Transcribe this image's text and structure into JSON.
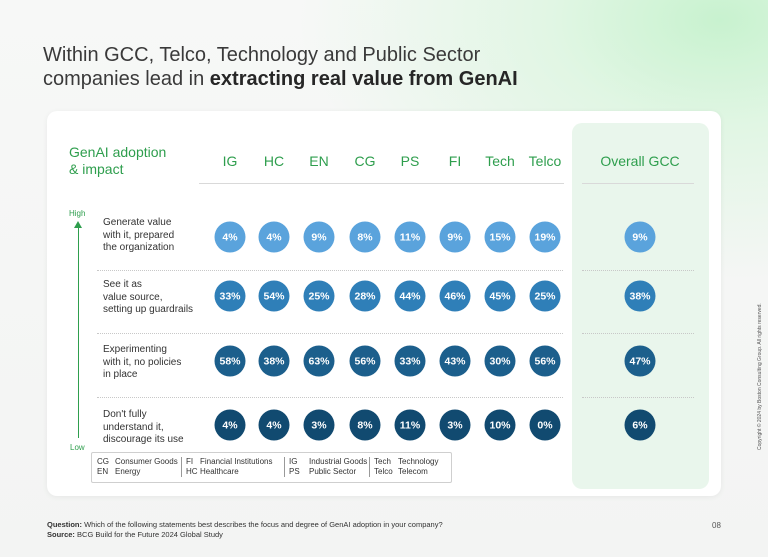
{
  "title": {
    "line1": "Within GCC, Telco, Technology and Public Sector",
    "line2_prefix": "companies lead in ",
    "line2_bold": "extracting real value from GenAI"
  },
  "chart_data": {
    "type": "table",
    "title": "GenAI adoption & impact",
    "header_label_line1": "GenAI adoption",
    "header_label_line2": "& impact",
    "columns": [
      "IG",
      "HC",
      "EN",
      "CG",
      "PS",
      "FI",
      "Tech",
      "Telco",
      "Overall GCC"
    ],
    "rows": [
      {
        "label_lines": [
          "Generate value",
          "with it, prepared",
          "the organization"
        ],
        "values": [
          "4%",
          "4%",
          "9%",
          "8%",
          "11%",
          "9%",
          "15%",
          "19%",
          "9%"
        ]
      },
      {
        "label_lines": [
          "See it as",
          "value source,",
          "setting up guardrails"
        ],
        "values": [
          "33%",
          "54%",
          "25%",
          "28%",
          "44%",
          "46%",
          "45%",
          "25%",
          "38%"
        ]
      },
      {
        "label_lines": [
          "Experimenting",
          "with it, no policies",
          "in place"
        ],
        "values": [
          "58%",
          "38%",
          "63%",
          "56%",
          "33%",
          "43%",
          "30%",
          "56%",
          "47%"
        ]
      },
      {
        "label_lines": [
          "Don't fully",
          "understand it,",
          "discourage its use"
        ],
        "values": [
          "4%",
          "4%",
          "3%",
          "8%",
          "11%",
          "3%",
          "10%",
          "0%",
          "6%"
        ]
      }
    ],
    "row_colors": [
      "#5aa3dc",
      "#2f7fb8",
      "#1c5f8c",
      "#114a70"
    ],
    "axis": {
      "high": "High",
      "low": "Low"
    }
  },
  "legend": [
    [
      [
        "CG",
        "Consumer Goods"
      ],
      [
        "EN",
        "Energy"
      ]
    ],
    [
      [
        "FI",
        "Financial Institutions"
      ],
      [
        "HC",
        "Healthcare"
      ]
    ],
    [
      [
        "IG",
        "Industrial Goods"
      ],
      [
        "PS",
        "Public Sector"
      ]
    ],
    [
      [
        "Tech",
        "Technology"
      ],
      [
        "Telco",
        "Telecom"
      ]
    ]
  ],
  "footer": {
    "question_label": "Question:",
    "question_text": " Which of the following statements best describes the focus and degree of GenAI adoption in your company?",
    "source_label": "Source:",
    "source_text": " BCG Build for the Future 2024 Global Study"
  },
  "page_number": "08",
  "copyright": "Copyright © 2024 by Boston Consulting Group. All rights reserved."
}
